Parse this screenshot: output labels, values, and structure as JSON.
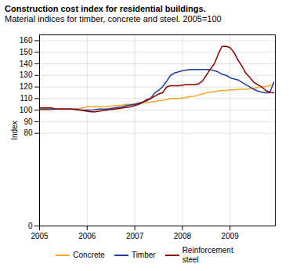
{
  "chart_data": {
    "type": "line",
    "title": "Construction cost index for residential buildings.",
    "subtitle": "Material indices for timber, concrete and steel. 2005=100",
    "ylabel": "Index",
    "x": [
      2005.0,
      2005.08,
      2005.17,
      2005.25,
      2005.33,
      2005.42,
      2005.5,
      2005.58,
      2005.67,
      2005.75,
      2005.83,
      2005.92,
      2006.0,
      2006.08,
      2006.17,
      2006.25,
      2006.33,
      2006.42,
      2006.5,
      2006.58,
      2006.67,
      2006.75,
      2006.83,
      2006.92,
      2007.0,
      2007.08,
      2007.17,
      2007.25,
      2007.33,
      2007.42,
      2007.5,
      2007.58,
      2007.67,
      2007.75,
      2007.83,
      2007.92,
      2008.0,
      2008.08,
      2008.17,
      2008.25,
      2008.33,
      2008.42,
      2008.5,
      2008.58,
      2008.67,
      2008.75,
      2008.83,
      2008.92,
      2009.0,
      2009.08,
      2009.17,
      2009.25,
      2009.33,
      2009.42,
      2009.5,
      2009.58,
      2009.67,
      2009.75,
      2009.83,
      2009.92
    ],
    "series": [
      {
        "name": "Concrete",
        "color": "#f5a623",
        "values": [
          100,
          100,
          100,
          100.5,
          101,
          101,
          101,
          101,
          101,
          101,
          101.5,
          102,
          103,
          103,
          103,
          103,
          103,
          103,
          103.5,
          104,
          104,
          104.5,
          105,
          105,
          105.5,
          106,
          106,
          106.5,
          107,
          107.5,
          108,
          108.5,
          109,
          110,
          110,
          110,
          110.5,
          111,
          111.5,
          112,
          113,
          114,
          115,
          115.5,
          116,
          116.5,
          117,
          117,
          117.5,
          117.5,
          118,
          118,
          118,
          118.5,
          119,
          119.5,
          120,
          120.5,
          121,
          122
        ]
      },
      {
        "name": "Timber",
        "color": "#1f3d99",
        "values": [
          101,
          101,
          101,
          101,
          101,
          101,
          101,
          101,
          101,
          101,
          100.5,
          100,
          100,
          100,
          100.5,
          101,
          101,
          101,
          101.5,
          102,
          102.5,
          103,
          104,
          104.5,
          105,
          106,
          107,
          108,
          110,
          115,
          117,
          120,
          125,
          130,
          132,
          133,
          134,
          134.5,
          135,
          135,
          135,
          135,
          135,
          135,
          134,
          133,
          131,
          130,
          128,
          127,
          126,
          124,
          122,
          120,
          118,
          116.5,
          115.5,
          115,
          115,
          124
        ]
      },
      {
        "name": "Reinforcement\nsteel",
        "color": "#8b0000",
        "values": [
          102,
          102,
          102,
          102,
          101,
          101,
          101,
          101,
          101,
          100.5,
          100,
          99.5,
          99,
          98.5,
          98.5,
          99,
          99.5,
          100,
          100.5,
          101,
          101.5,
          102,
          102.5,
          103,
          104,
          105,
          107,
          109,
          110,
          112,
          114,
          115,
          120,
          121,
          121,
          121,
          121.5,
          122,
          122,
          122,
          122.5,
          125,
          130,
          135,
          140,
          148,
          155,
          155,
          154,
          150,
          143,
          138,
          132,
          128,
          124,
          122,
          120,
          117,
          115.5,
          115
        ]
      }
    ],
    "xlim": [
      2005.0,
      2009.95
    ],
    "xticks": [
      2005,
      2006,
      2007,
      2008,
      2009
    ],
    "ylim": [
      0,
      165
    ],
    "yticks": [
      0,
      80,
      90,
      100,
      110,
      120,
      130,
      140,
      150,
      160
    ],
    "grid": true,
    "legend": "bottom"
  }
}
